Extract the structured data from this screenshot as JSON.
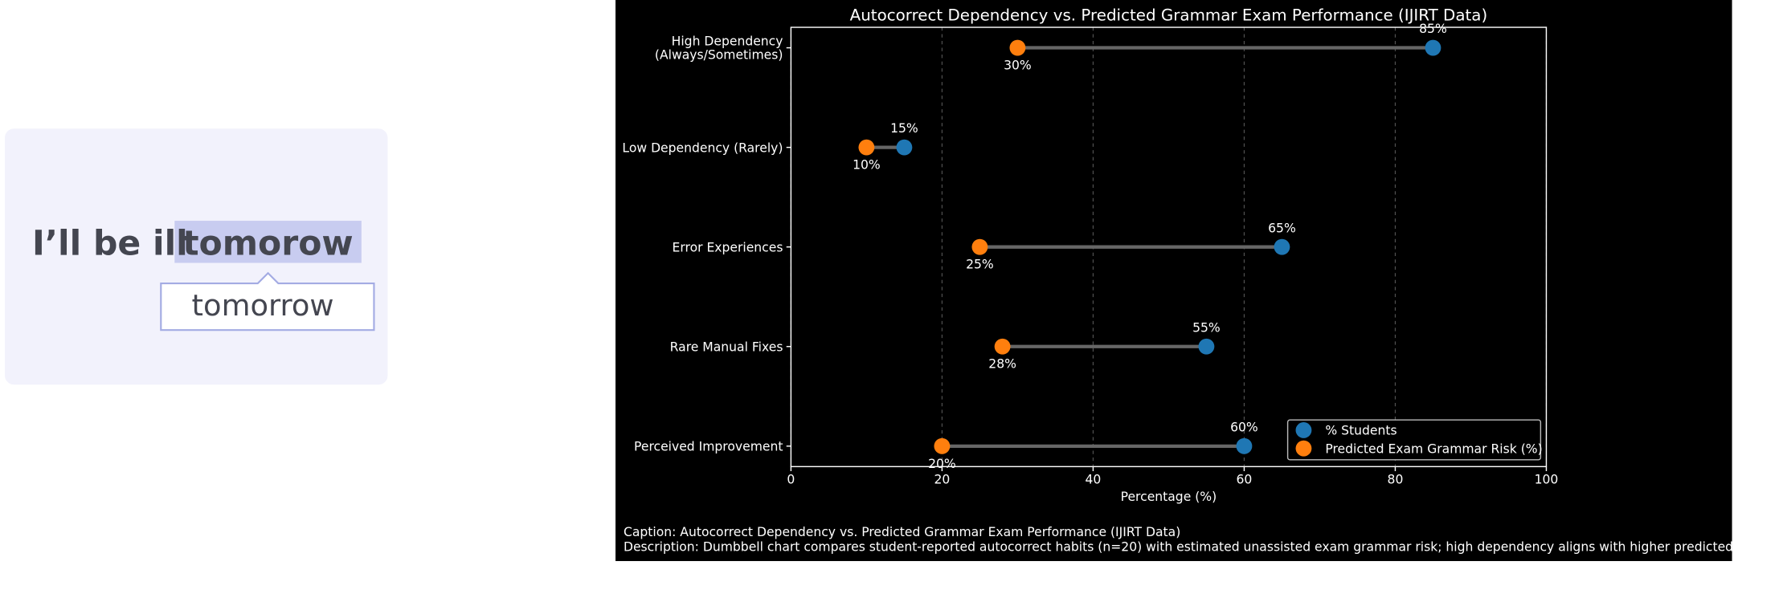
{
  "illustration": {
    "sentence": "I’ll be ill",
    "typo": "tomorow",
    "suggestion": "tomorrow"
  },
  "chart_data": {
    "type": "dumbbell",
    "title": "Autocorrect Dependency vs. Predicted Grammar Exam Performance (IJIRT Data)",
    "categories": [
      "High Dependency\n(Always/Sometimes)",
      "Low Dependency (Rarely)",
      "Error Experiences",
      "Rare Manual Fixes",
      "Perceived Improvement"
    ],
    "series": [
      {
        "name": "% Students",
        "color": "#1f77b4",
        "values": [
          85,
          15,
          65,
          55,
          60
        ],
        "value_labels": [
          "85%",
          "15%",
          "65%",
          "55%",
          "60%"
        ]
      },
      {
        "name": "Predicted Exam Grammar Risk (%)",
        "color": "#ff7f0e",
        "values": [
          30,
          10,
          25,
          28,
          20
        ],
        "value_labels": [
          "30%",
          "10%",
          "25%",
          "28%",
          "20%"
        ]
      }
    ],
    "xlabel": "Percentage (%)",
    "xlim": [
      0,
      100
    ],
    "xticks": [
      0,
      20,
      40,
      60,
      80,
      100
    ],
    "grid": true,
    "legend": "lower right",
    "caption": "Caption: Autocorrect Dependency vs. Predicted Grammar Exam Performance (IJIRT Data)",
    "description": "Description: Dumbbell chart compares student-reported autocorrect habits (n=20) with estimated unassisted exam grammar risk; high dependency aligns with higher predicted risk."
  }
}
